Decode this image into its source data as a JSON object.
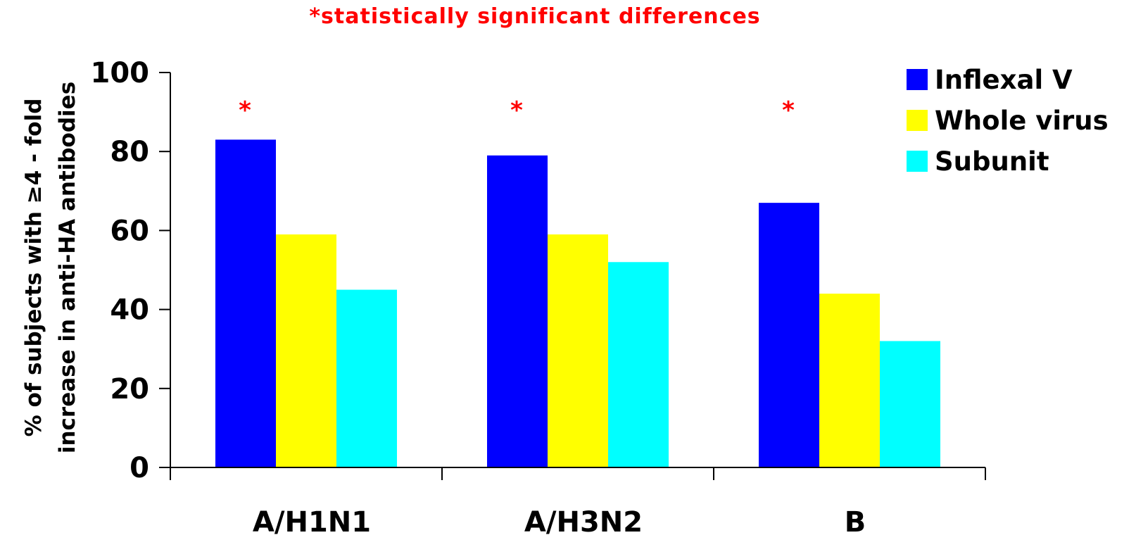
{
  "annotation": "*statistically significant differences",
  "chart_data": {
    "type": "bar",
    "categories": [
      "A/H1N1",
      "A/H3N2",
      "B"
    ],
    "series": [
      {
        "name": "Inflexal V",
        "color": "#0000ff",
        "values": [
          83,
          79,
          67
        ]
      },
      {
        "name": "Whole virus",
        "color": "#ffff00",
        "values": [
          59,
          59,
          44
        ]
      },
      {
        "name": "Subunit",
        "color": "#00ffff",
        "values": [
          45,
          52,
          32
        ]
      }
    ],
    "ylabel_lines": [
      "% of subjects with ≥4 - fold",
      "increase in anti-HA antibodies"
    ],
    "ylim": [
      0,
      100
    ],
    "yticks": [
      "0",
      "20",
      "40",
      "60",
      "80",
      "100"
    ],
    "significance_marker": "*",
    "significance_color": "#ff0000",
    "significant_categories": [
      true,
      true,
      true
    ],
    "grid": false,
    "legend_position": "top-right"
  }
}
